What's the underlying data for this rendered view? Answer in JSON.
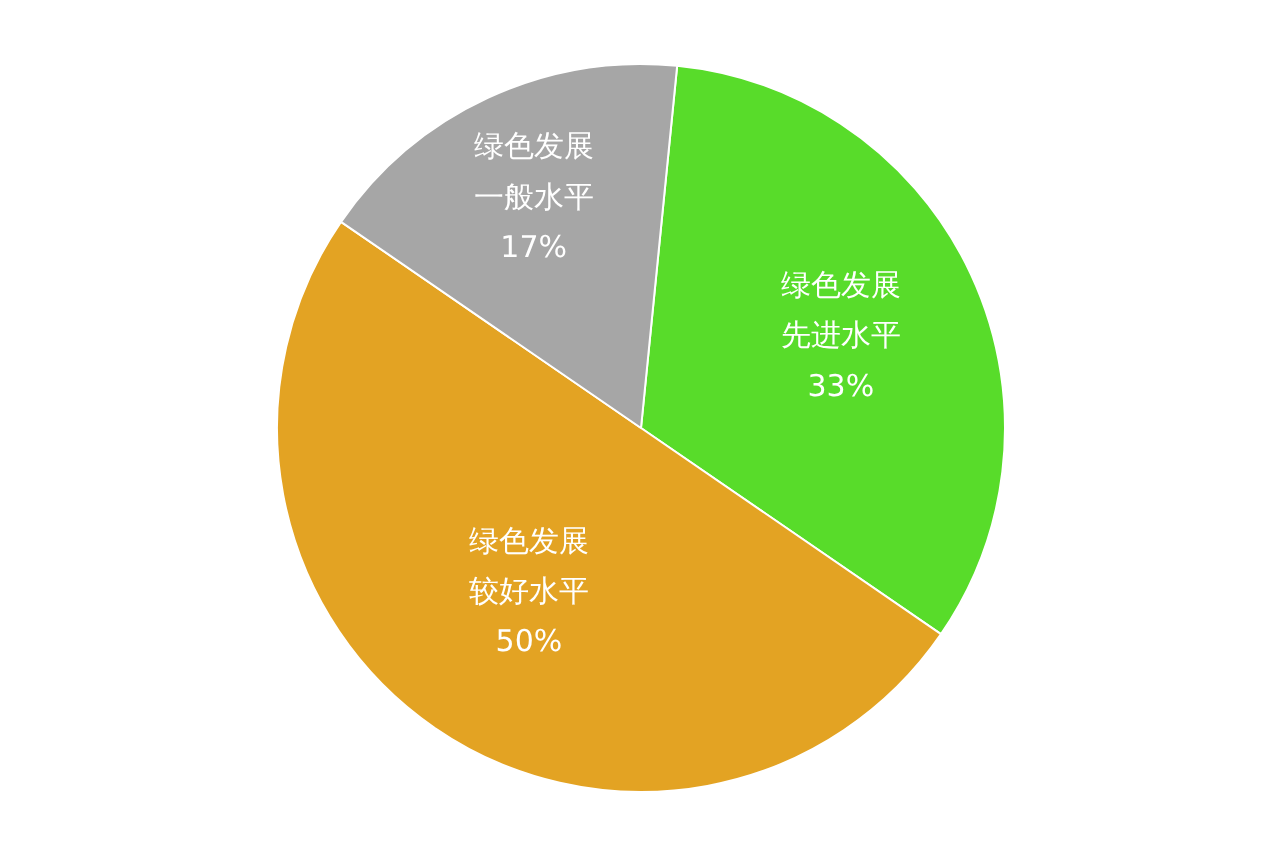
{
  "chart_data": {
    "type": "pie",
    "categories": [
      "绿色发展先进水平",
      "绿色发展较好水平",
      "绿色发展一般水平"
    ],
    "values": [
      33,
      50,
      17
    ],
    "colors": [
      "#58dc2a",
      "#e3a323",
      "#a6a6a6"
    ],
    "value_labels": [
      "33%",
      "50%",
      "17%"
    ]
  }
}
